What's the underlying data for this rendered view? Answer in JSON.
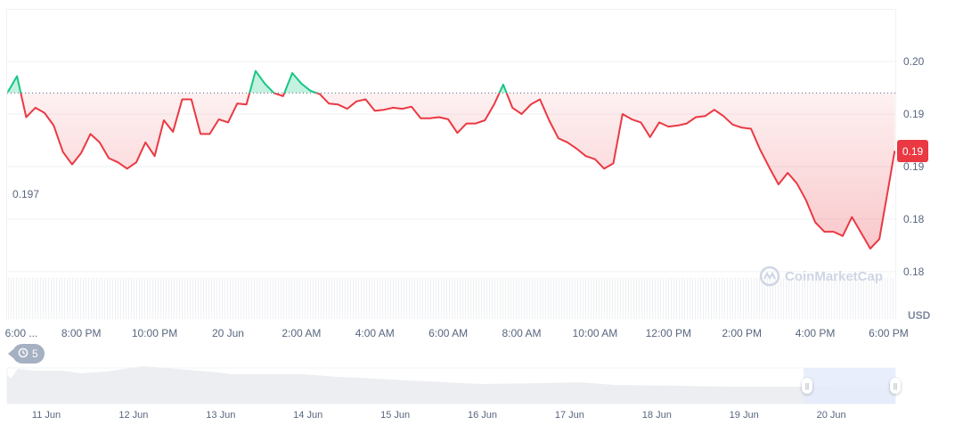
{
  "chart_data": {
    "type": "area",
    "currency_label": "USD",
    "reference_value_label": "0.197",
    "reference_value": 0.197,
    "current_price_label": "0.19",
    "ylim": [
      0.1755,
      0.205
    ],
    "xlim": [
      "19 Jun 18:00",
      "20 Jun 18:11"
    ],
    "y_ticks": [
      {
        "value": 0.2,
        "label": "0.20"
      },
      {
        "value": 0.195,
        "label": "0.19"
      },
      {
        "value": 0.19,
        "label": "0.19"
      },
      {
        "value": 0.185,
        "label": "0.18"
      },
      {
        "value": 0.18,
        "label": "0.18"
      }
    ],
    "x_ticks": [
      {
        "time": "19 Jun 18:00",
        "label": "6:00 ..."
      },
      {
        "time": "19 Jun 20:00",
        "label": "8:00 PM"
      },
      {
        "time": "19 Jun 22:00",
        "label": "10:00 PM"
      },
      {
        "time": "20 Jun 00:00",
        "label": "20 Jun"
      },
      {
        "time": "20 Jun 02:00",
        "label": "2:00 AM"
      },
      {
        "time": "20 Jun 04:00",
        "label": "4:00 AM"
      },
      {
        "time": "20 Jun 06:00",
        "label": "6:00 AM"
      },
      {
        "time": "20 Jun 08:00",
        "label": "8:00 AM"
      },
      {
        "time": "20 Jun 10:00",
        "label": "10:00 AM"
      },
      {
        "time": "20 Jun 12:00",
        "label": "12:00 PM"
      },
      {
        "time": "20 Jun 14:00",
        "label": "2:00 PM"
      },
      {
        "time": "20 Jun 16:00",
        "label": "4:00 PM"
      },
      {
        "time": "20 Jun 18:00",
        "label": "6:00 PM"
      }
    ],
    "colors": {
      "up": "#16c784",
      "down": "#ea3943"
    },
    "grid": true,
    "x": [
      "19 Jun 18:00",
      "19 Jun 18:15",
      "19 Jun 18:30",
      "19 Jun 18:45",
      "19 Jun 19:00",
      "19 Jun 19:15",
      "19 Jun 19:30",
      "19 Jun 19:45",
      "19 Jun 20:00",
      "19 Jun 20:15",
      "19 Jun 20:30",
      "19 Jun 20:45",
      "19 Jun 21:00",
      "19 Jun 21:15",
      "19 Jun 21:30",
      "19 Jun 21:45",
      "19 Jun 22:00",
      "19 Jun 22:15",
      "19 Jun 22:30",
      "19 Jun 22:45",
      "19 Jun 23:00",
      "19 Jun 23:15",
      "19 Jun 23:30",
      "19 Jun 23:45",
      "20 Jun 00:00",
      "20 Jun 00:15",
      "20 Jun 00:30",
      "20 Jun 00:45",
      "20 Jun 01:00",
      "20 Jun 01:15",
      "20 Jun 01:30",
      "20 Jun 01:45",
      "20 Jun 02:00",
      "20 Jun 02:15",
      "20 Jun 02:30",
      "20 Jun 02:45",
      "20 Jun 03:00",
      "20 Jun 03:15",
      "20 Jun 03:30",
      "20 Jun 03:45",
      "20 Jun 04:00",
      "20 Jun 04:15",
      "20 Jun 04:30",
      "20 Jun 04:45",
      "20 Jun 05:00",
      "20 Jun 05:15",
      "20 Jun 05:30",
      "20 Jun 05:45",
      "20 Jun 06:00",
      "20 Jun 06:15",
      "20 Jun 06:30",
      "20 Jun 06:45",
      "20 Jun 07:00",
      "20 Jun 07:15",
      "20 Jun 07:30",
      "20 Jun 07:45",
      "20 Jun 08:00",
      "20 Jun 08:15",
      "20 Jun 08:30",
      "20 Jun 08:45",
      "20 Jun 09:00",
      "20 Jun 09:15",
      "20 Jun 09:30",
      "20 Jun 09:45",
      "20 Jun 10:00",
      "20 Jun 10:15",
      "20 Jun 10:30",
      "20 Jun 10:45",
      "20 Jun 11:00",
      "20 Jun 11:15",
      "20 Jun 11:30",
      "20 Jun 11:45",
      "20 Jun 12:00",
      "20 Jun 12:15",
      "20 Jun 12:30",
      "20 Jun 12:45",
      "20 Jun 13:00",
      "20 Jun 13:15",
      "20 Jun 13:30",
      "20 Jun 13:45",
      "20 Jun 14:00",
      "20 Jun 14:15",
      "20 Jun 14:30",
      "20 Jun 14:45",
      "20 Jun 15:00",
      "20 Jun 15:15",
      "20 Jun 15:30",
      "20 Jun 15:45",
      "20 Jun 16:00",
      "20 Jun 16:15",
      "20 Jun 16:30",
      "20 Jun 16:45",
      "20 Jun 17:00",
      "20 Jun 17:15",
      "20 Jun 17:30",
      "20 Jun 17:45",
      "20 Jun 18:00",
      "20 Jun 18:10"
    ],
    "y": [
      0.1971,
      0.1986,
      0.1947,
      0.1956,
      0.1951,
      0.1939,
      0.1914,
      0.1902,
      0.1913,
      0.1931,
      0.1923,
      0.1908,
      0.1904,
      0.1898,
      0.1904,
      0.1923,
      0.191,
      0.1944,
      0.1933,
      0.1964,
      0.1964,
      0.1931,
      0.1931,
      0.1945,
      0.1942,
      0.196,
      0.1959,
      0.1991,
      0.1979,
      0.197,
      0.1967,
      0.1989,
      0.1979,
      0.1972,
      0.1969,
      0.196,
      0.1959,
      0.1955,
      0.1962,
      0.1964,
      0.1953,
      0.1954,
      0.1956,
      0.1955,
      0.1957,
      0.1946,
      0.1946,
      0.1947,
      0.1945,
      0.1932,
      0.1941,
      0.1941,
      0.1944,
      0.1959,
      0.1978,
      0.1956,
      0.195,
      0.1959,
      0.1964,
      0.1944,
      0.1927,
      0.1923,
      0.1917,
      0.191,
      0.1907,
      0.1898,
      0.1903,
      0.195,
      0.1945,
      0.1942,
      0.1928,
      0.1942,
      0.1938,
      0.1939,
      0.1941,
      0.1947,
      0.1948,
      0.1954,
      0.1948,
      0.194,
      0.1937,
      0.1936,
      0.1916,
      0.1899,
      0.1883,
      0.1894,
      0.1884,
      0.1868,
      0.1847,
      0.1838,
      0.1838,
      0.1834,
      0.1852,
      0.1837,
      0.1822,
      0.1831,
      0.1881,
      0.1915
    ]
  },
  "history_badge": {
    "icon": "history-icon",
    "count": "5"
  },
  "watermark": "CoinMarketCap",
  "navigator": {
    "labels": [
      "11 Jun",
      "12 Jun",
      "13 Jun",
      "14 Jun",
      "15 Jun",
      "16 Jun",
      "17 Jun",
      "18 Jun",
      "19 Jun",
      "20 Jun"
    ],
    "selected_range": [
      "19 Jun 18:00",
      "20 Jun 18:11"
    ]
  }
}
